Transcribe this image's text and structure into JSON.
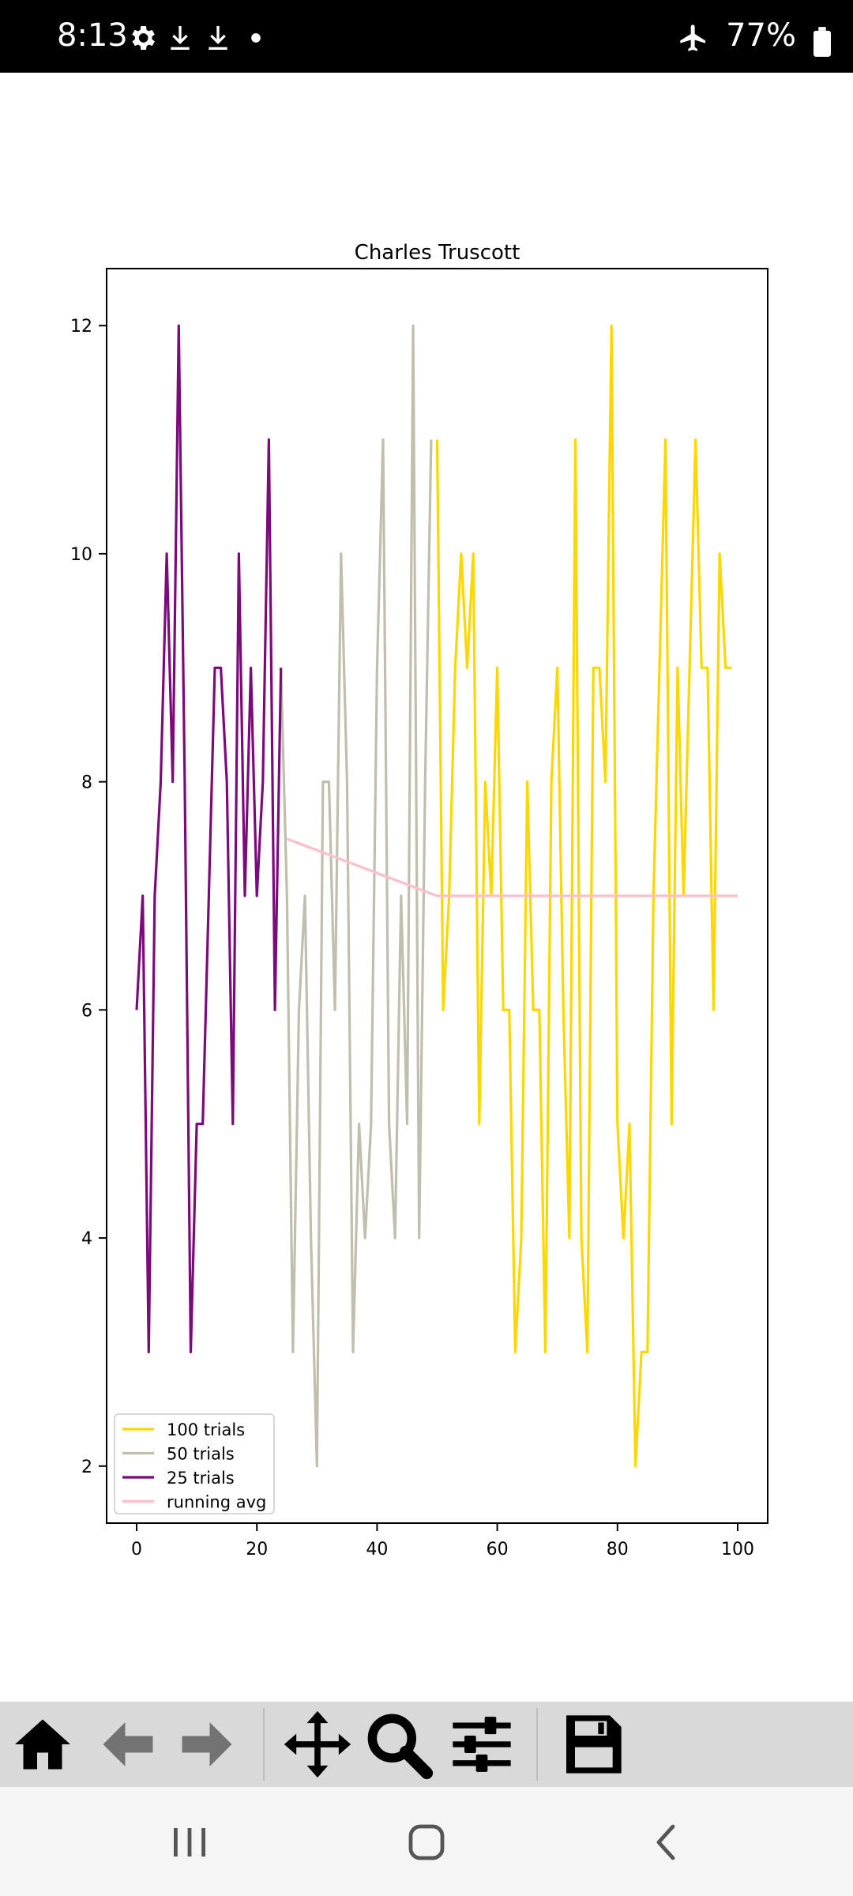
{
  "status_bar": {
    "time": "8:13",
    "battery": "77%",
    "icons": [
      "gear-icon",
      "download-icon",
      "download-icon",
      "dot-icon",
      "airplane-icon",
      "battery-icon"
    ]
  },
  "toolbar": {
    "tools": [
      "home-icon",
      "back-arrow-icon",
      "forward-arrow-icon",
      "pan-icon",
      "zoom-icon",
      "configure-icon",
      "save-icon"
    ]
  },
  "nav_bar": {
    "buttons": [
      "recent-apps-icon",
      "home-circle-icon",
      "back-icon"
    ]
  },
  "chart_data": {
    "type": "line",
    "title": "Charles Truscott",
    "xlabel": "",
    "ylabel": "",
    "xlim": [
      -5,
      105
    ],
    "ylim": [
      1.5,
      12.5
    ],
    "xticks": [
      0,
      20,
      40,
      60,
      80,
      100
    ],
    "yticks": [
      2,
      4,
      6,
      8,
      10,
      12
    ],
    "grid": false,
    "legend_position": "lower-left",
    "series": [
      {
        "name": "100 trials",
        "color": "#ffd700",
        "x": [
          50,
          51,
          52,
          53,
          54,
          55,
          56,
          57,
          58,
          59,
          60,
          61,
          62,
          63,
          64,
          65,
          66,
          67,
          68,
          69,
          70,
          71,
          72,
          73,
          74,
          75,
          76,
          77,
          78,
          79,
          80,
          81,
          82,
          83,
          84,
          85,
          86,
          87,
          88,
          89,
          90,
          91,
          92,
          93,
          94,
          95,
          96,
          97,
          98,
          99
        ],
        "y": [
          11,
          6,
          7,
          9,
          10,
          9,
          10,
          5,
          8,
          7,
          9,
          6,
          6,
          3,
          4,
          8,
          6,
          6,
          3,
          8,
          9,
          6,
          4,
          11,
          4,
          3,
          9,
          9,
          8,
          12,
          5,
          4,
          5,
          2,
          3,
          3,
          7,
          9,
          11,
          5,
          9,
          7,
          9,
          11,
          9,
          9,
          6,
          10,
          9,
          9
        ]
      },
      {
        "name": "50 trials",
        "color": "#c0bfae",
        "x": [
          24,
          25,
          26,
          27,
          28,
          29,
          30,
          31,
          32,
          33,
          34,
          35,
          36,
          37,
          38,
          39,
          40,
          41,
          42,
          43,
          44,
          45,
          46,
          47,
          48,
          49
        ],
        "y": [
          9,
          7,
          3,
          6,
          7,
          4,
          2,
          8,
          8,
          6,
          10,
          8,
          3,
          5,
          4,
          5,
          9,
          11,
          5,
          4,
          7,
          5,
          12,
          4,
          8,
          11
        ]
      },
      {
        "name": "25 trials",
        "color": "#7b0b7b",
        "x": [
          0,
          1,
          2,
          3,
          4,
          5,
          6,
          7,
          8,
          9,
          10,
          11,
          12,
          13,
          14,
          15,
          16,
          17,
          18,
          19,
          20,
          21,
          22,
          23,
          24
        ],
        "y": [
          6,
          7,
          3,
          7,
          8,
          10,
          8,
          12,
          8,
          3,
          5,
          5,
          7,
          9,
          9,
          8,
          5,
          10,
          7,
          9,
          7,
          8,
          11,
          6,
          9
        ]
      },
      {
        "name": "running avg",
        "color": "#ffc0cb",
        "x": [
          25,
          50,
          100
        ],
        "y": [
          7.5,
          7,
          7
        ]
      }
    ]
  }
}
